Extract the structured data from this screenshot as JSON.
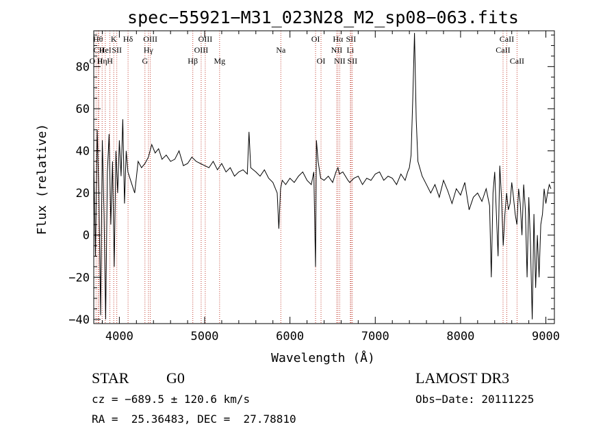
{
  "chart_data": {
    "type": "line",
    "title": "spec−55921−M31_023N28_M2_sp08−063.fits",
    "xlabel": "Wavelength (Å)",
    "ylabel": "Flux (relative)",
    "xlim": [
      3700,
      9100
    ],
    "ylim": [
      -42,
      97
    ],
    "xticks": [
      {
        "value": 4000,
        "label": "4000"
      },
      {
        "value": 5000,
        "label": "5000"
      },
      {
        "value": 6000,
        "label": "6000"
      },
      {
        "value": 7000,
        "label": "7000"
      },
      {
        "value": 8000,
        "label": "8000"
      },
      {
        "value": 9000,
        "label": "9000"
      }
    ],
    "yticks": [
      {
        "value": -40,
        "label": "−40"
      },
      {
        "value": -20,
        "label": "−20"
      },
      {
        "value": 0,
        "label": "0"
      },
      {
        "value": 20,
        "label": "20"
      },
      {
        "value": 40,
        "label": "40"
      },
      {
        "value": 60,
        "label": "60"
      },
      {
        "value": 80,
        "label": "80"
      }
    ],
    "series": [
      {
        "name": "flux",
        "x": [
          3700,
          3720,
          3740,
          3760,
          3780,
          3800,
          3820,
          3840,
          3860,
          3880,
          3900,
          3920,
          3940,
          3960,
          3980,
          4000,
          4020,
          4040,
          4060,
          4080,
          4100,
          4140,
          4180,
          4220,
          4260,
          4300,
          4340,
          4380,
          4420,
          4460,
          4500,
          4550,
          4600,
          4650,
          4700,
          4750,
          4800,
          4850,
          4900,
          4950,
          5000,
          5050,
          5100,
          5150,
          5200,
          5250,
          5300,
          5350,
          5400,
          5450,
          5500,
          5520,
          5540,
          5600,
          5650,
          5700,
          5750,
          5800,
          5850,
          5870,
          5890,
          5910,
          5950,
          6000,
          6050,
          6100,
          6150,
          6200,
          6250,
          6280,
          6300,
          6310,
          6330,
          6360,
          6400,
          6450,
          6500,
          6540,
          6563,
          6580,
          6620,
          6680,
          6700,
          6750,
          6800,
          6850,
          6900,
          6950,
          7000,
          7050,
          7100,
          7150,
          7200,
          7250,
          7300,
          7350,
          7380,
          7400,
          7420,
          7440,
          7460,
          7480,
          7500,
          7550,
          7600,
          7650,
          7700,
          7750,
          7800,
          7850,
          7900,
          7950,
          8000,
          8050,
          8100,
          8150,
          8200,
          8250,
          8300,
          8340,
          8360,
          8380,
          8400,
          8440,
          8460,
          8480,
          8500,
          8520,
          8540,
          8560,
          8580,
          8600,
          8620,
          8640,
          8660,
          8680,
          8700,
          8720,
          8740,
          8760,
          8780,
          8800,
          8820,
          8840,
          8860,
          8880,
          8900,
          8920,
          8940,
          8960,
          8980,
          9000,
          9020,
          9040,
          9060
        ],
        "y": [
          35,
          -10,
          50,
          20,
          -38,
          45,
          10,
          -40,
          30,
          48,
          5,
          35,
          -15,
          40,
          20,
          45,
          28,
          55,
          15,
          40,
          30,
          25,
          20,
          35,
          32,
          34,
          37,
          43,
          39,
          41,
          36,
          38,
          35,
          36,
          40,
          33,
          34,
          37,
          35,
          34,
          33,
          32,
          35,
          31,
          34,
          30,
          32,
          28,
          30,
          31,
          29,
          49,
          32,
          30,
          28,
          31,
          27,
          25,
          20,
          3,
          22,
          26,
          24,
          27,
          25,
          28,
          30,
          26,
          24,
          30,
          -15,
          45,
          35,
          27,
          26,
          28,
          25,
          30,
          32,
          29,
          30,
          26,
          25,
          27,
          28,
          24,
          27,
          26,
          29,
          30,
          26,
          28,
          27,
          24,
          29,
          26,
          30,
          32,
          38,
          65,
          96,
          55,
          35,
          28,
          24,
          20,
          24,
          18,
          26,
          21,
          15,
          22,
          19,
          25,
          12,
          18,
          20,
          16,
          22,
          14,
          -20,
          20,
          30,
          -10,
          33,
          18,
          -5,
          10,
          20,
          12,
          15,
          25,
          18,
          10,
          5,
          22,
          15,
          0,
          24,
          12,
          -20,
          18,
          -5,
          -40,
          10,
          -25,
          0,
          -20,
          5,
          10,
          22,
          15,
          20,
          24,
          22
        ]
      }
    ],
    "lines": [
      {
        "x": 3727,
        "label": "O II",
        "row": 2
      },
      {
        "x": 3750,
        "label": "Hθ",
        "row": 0
      },
      {
        "x": 3760,
        "label": "CII",
        "row": 1
      },
      {
        "x": 3798,
        "label": "Hη",
        "row": 2
      },
      {
        "x": 3835,
        "label": "HeI",
        "row": 1
      },
      {
        "x": 3889,
        "label": "H",
        "row": 2
      },
      {
        "x": 3934,
        "label": "K",
        "row": 0
      },
      {
        "x": 3970,
        "label": "SII",
        "row": 1
      },
      {
        "x": 4102,
        "label": "Hδ",
        "row": 0
      },
      {
        "x": 4300,
        "label": "G",
        "row": 2
      },
      {
        "x": 4341,
        "label": "Hγ",
        "row": 1
      },
      {
        "x": 4363,
        "label": "OIII",
        "row": 0
      },
      {
        "x": 4861,
        "label": "Hβ",
        "row": 2
      },
      {
        "x": 4959,
        "label": "OIII",
        "row": 1
      },
      {
        "x": 5007,
        "label": "OIII",
        "row": 0
      },
      {
        "x": 5175,
        "label": "Mg",
        "row": 2
      },
      {
        "x": 5893,
        "label": "Na",
        "row": 1
      },
      {
        "x": 6300,
        "label": "OI",
        "row": 0
      },
      {
        "x": 6364,
        "label": "OI",
        "row": 2
      },
      {
        "x": 6548,
        "label": "NII",
        "row": 1
      },
      {
        "x": 6563,
        "label": "Hα",
        "row": 0
      },
      {
        "x": 6583,
        "label": "NII",
        "row": 2
      },
      {
        "x": 6708,
        "label": "Li",
        "row": 1
      },
      {
        "x": 6716,
        "label": "SII",
        "row": 0
      },
      {
        "x": 6731,
        "label": "SII",
        "row": 2
      },
      {
        "x": 8498,
        "label": "CaII",
        "row": 1
      },
      {
        "x": 8542,
        "label": "CaII",
        "row": 0
      },
      {
        "x": 8662,
        "label": "CaII",
        "row": 2
      }
    ]
  },
  "info": {
    "class": "STAR",
    "subclass": "G0",
    "survey": "LAMOST DR3",
    "cz": "cz = −689.5 ± 120.6 km/s",
    "obs_date": "Obs−Date: 20111225",
    "coords": "RA =  25.36483, DEC =  27.78810"
  }
}
